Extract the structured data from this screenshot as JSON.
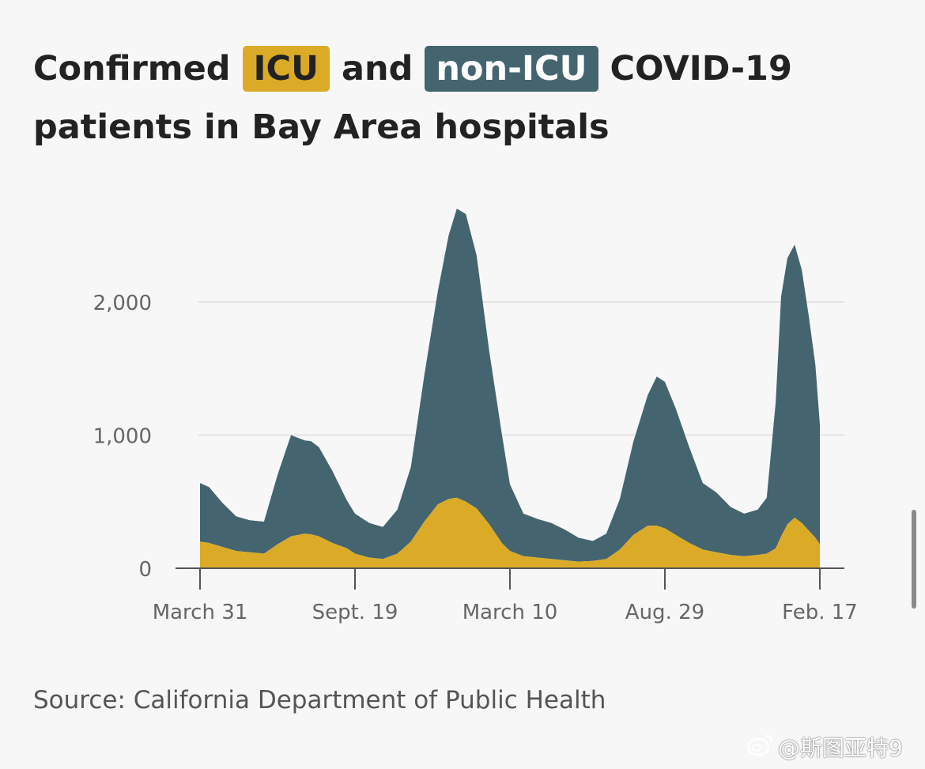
{
  "title": {
    "part1": "Confirmed",
    "icu_label": "ICU",
    "part2": "and",
    "non_icu_label": "non-ICU",
    "part3": "COVID-19",
    "line2": "patients in Bay Area hospitals"
  },
  "source": "Source: California Department of Public Health",
  "watermark": "@斯图亚特9",
  "colors": {
    "icu": "#dbab27",
    "non_icu": "#44656f",
    "grid": "#e3e3e3",
    "axis": "#555555",
    "tick_text": "#666666"
  },
  "icons": {
    "watermark": "weibo-icon"
  },
  "chart_data": {
    "type": "area",
    "stacked": true,
    "title": "Confirmed ICU and non-ICU COVID-19 patients in Bay Area hospitals",
    "xlabel": "",
    "ylabel": "",
    "x_tick_labels": [
      "March 31",
      "Sept. 19",
      "March 10",
      "Aug. 29",
      "Feb. 17"
    ],
    "x_ticks": [
      "2020-03-31",
      "2020-09-19",
      "2021-03-10",
      "2021-08-29",
      "2022-02-17"
    ],
    "xlim": [
      "2020-03-31",
      "2022-02-17"
    ],
    "y_ticks": [
      0,
      1000,
      2000
    ],
    "y_tick_labels": [
      "0",
      "1,000",
      "2,000"
    ],
    "ylim": [
      0,
      2200
    ],
    "grid": true,
    "x": [
      "2020-03-31",
      "2020-04-10",
      "2020-04-25",
      "2020-05-10",
      "2020-05-25",
      "2020-06-10",
      "2020-06-25",
      "2020-07-10",
      "2020-07-25",
      "2020-08-01",
      "2020-08-10",
      "2020-08-25",
      "2020-09-10",
      "2020-09-19",
      "2020-10-05",
      "2020-10-20",
      "2020-11-05",
      "2020-11-20",
      "2020-12-05",
      "2020-12-20",
      "2021-01-01",
      "2021-01-10",
      "2021-01-20",
      "2021-02-01",
      "2021-02-15",
      "2021-03-01",
      "2021-03-10",
      "2021-03-25",
      "2021-04-10",
      "2021-04-25",
      "2021-05-10",
      "2021-05-25",
      "2021-06-10",
      "2021-06-25",
      "2021-07-10",
      "2021-07-25",
      "2021-08-10",
      "2021-08-20",
      "2021-08-29",
      "2021-09-10",
      "2021-09-25",
      "2021-10-10",
      "2021-10-25",
      "2021-11-10",
      "2021-11-25",
      "2021-12-10",
      "2021-12-20",
      "2021-12-30",
      "2022-01-05",
      "2022-01-12",
      "2022-01-20",
      "2022-01-28",
      "2022-02-05",
      "2022-02-12",
      "2022-02-17"
    ],
    "series": [
      {
        "name": "ICU",
        "values": [
          200,
          190,
          160,
          130,
          120,
          110,
          180,
          240,
          260,
          255,
          240,
          190,
          150,
          110,
          80,
          70,
          110,
          200,
          350,
          480,
          520,
          530,
          500,
          450,
          330,
          190,
          130,
          90,
          80,
          70,
          60,
          50,
          55,
          70,
          140,
          250,
          320,
          320,
          300,
          250,
          190,
          140,
          120,
          100,
          90,
          100,
          110,
          150,
          240,
          330,
          380,
          340,
          280,
          230,
          180
        ]
      },
      {
        "name": "non-ICU",
        "values": [
          440,
          420,
          330,
          260,
          240,
          240,
          520,
          760,
          700,
          700,
          670,
          540,
          360,
          300,
          260,
          240,
          330,
          560,
          1100,
          1600,
          1980,
          2170,
          2160,
          1900,
          1300,
          820,
          500,
          320,
          290,
          270,
          230,
          180,
          150,
          190,
          380,
          700,
          980,
          1120,
          1100,
          950,
          720,
          500,
          450,
          360,
          320,
          340,
          420,
          1100,
          1800,
          2000,
          2050,
          1900,
          1600,
          1300,
          900
        ]
      }
    ]
  }
}
